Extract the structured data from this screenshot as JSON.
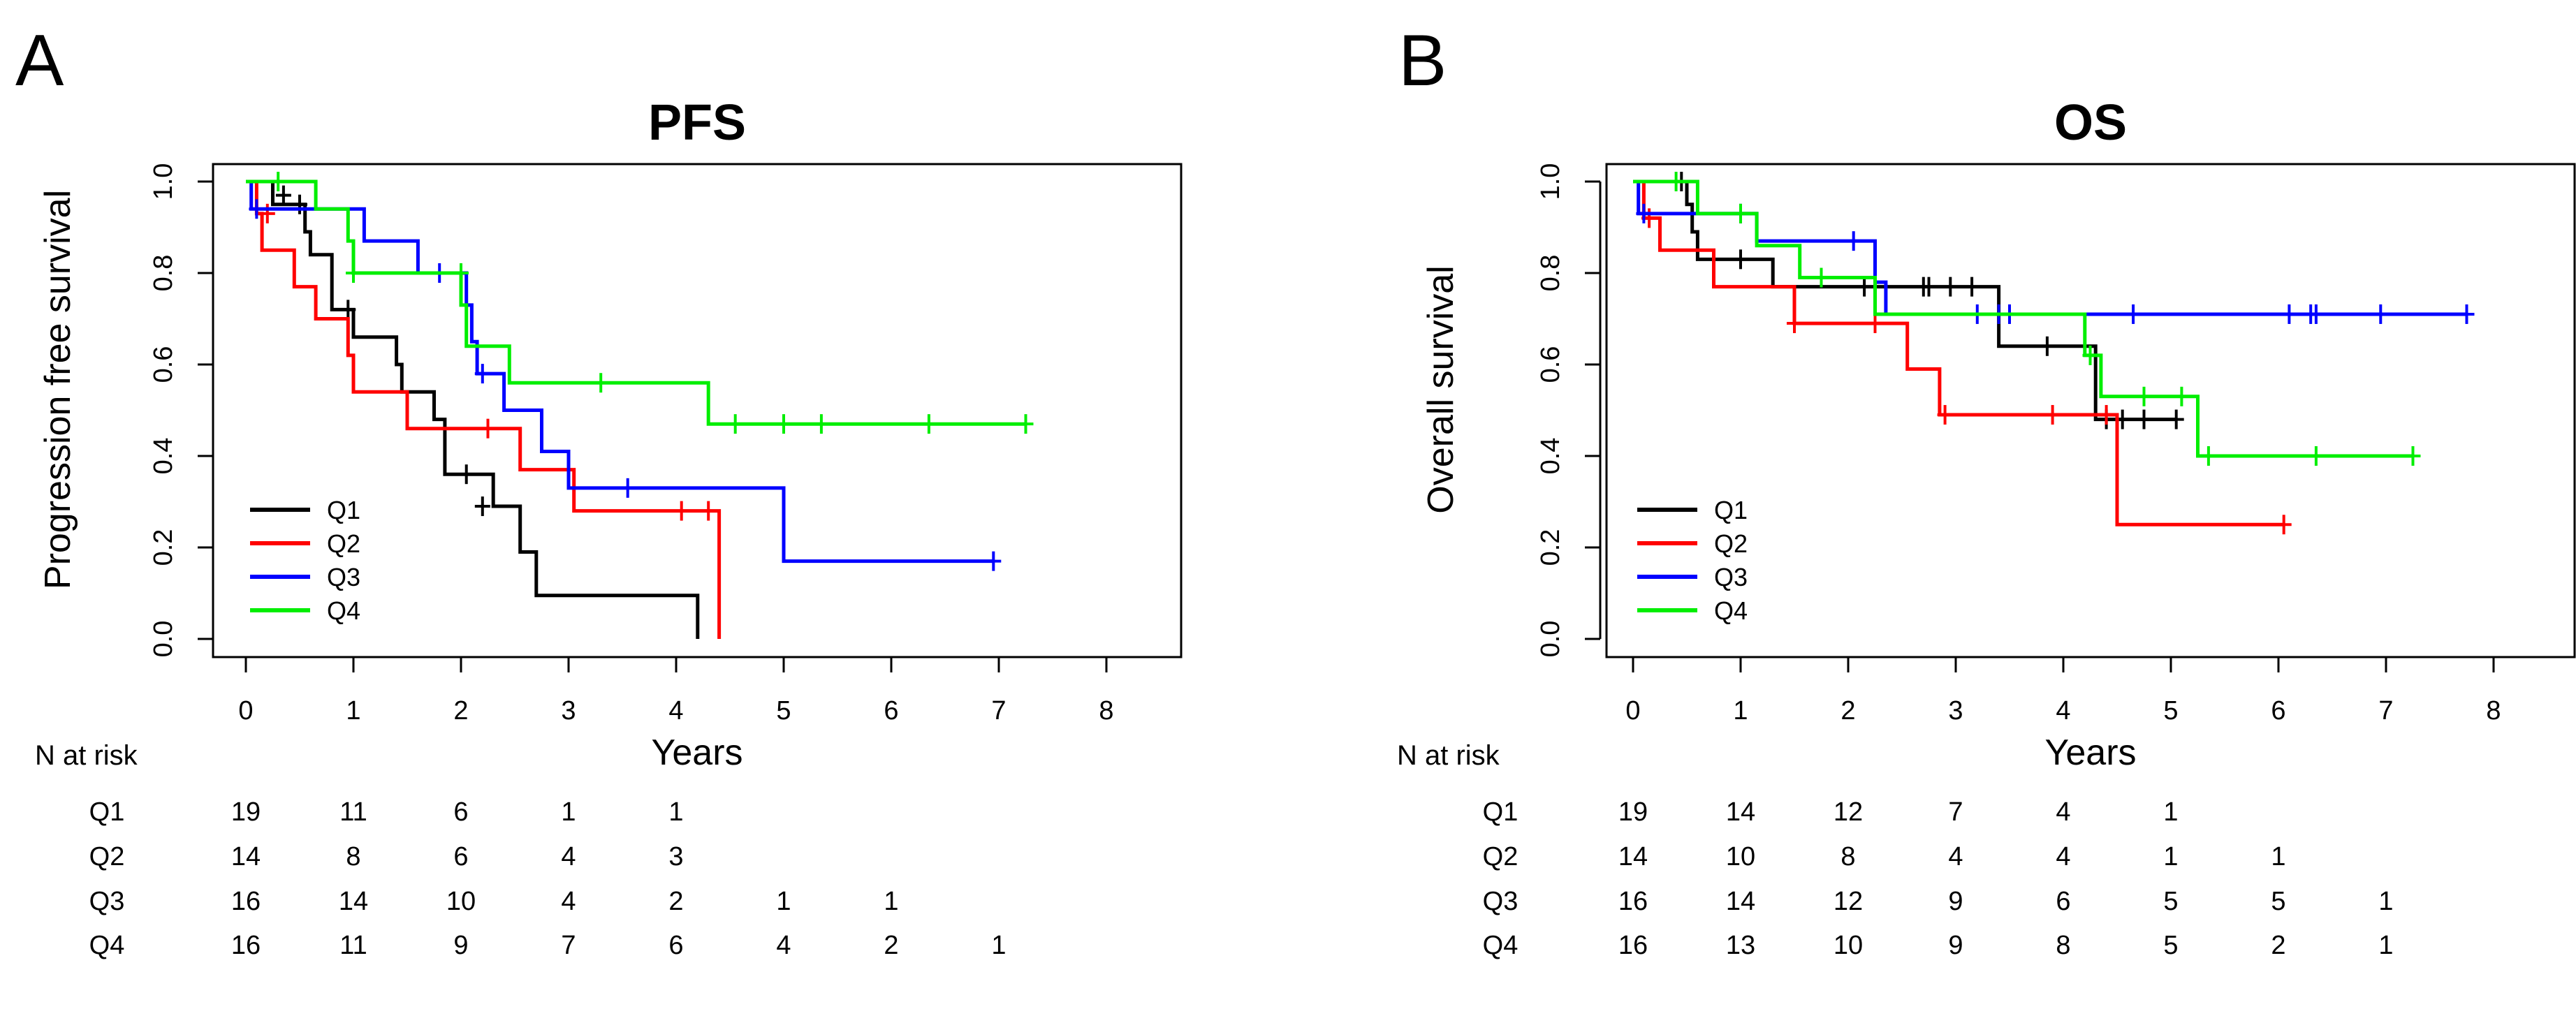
{
  "panels": [
    {
      "letter": "A",
      "risk_label": "N at risk",
      "chart_data": {
        "type": "line",
        "subtype": "kaplan-meier",
        "title": "PFS",
        "xlabel": "Years",
        "ylabel": "Progression free survival",
        "xlim": [
          0,
          8
        ],
        "ylim": [
          0,
          1
        ],
        "xticks": [
          "0",
          "1",
          "2",
          "3",
          "4",
          "5",
          "6",
          "7",
          "8"
        ],
        "yticks": [
          "0.0",
          "0.2",
          "0.4",
          "0.6",
          "0.8",
          "1.0"
        ],
        "legend_position": "bottom-left",
        "grid": false,
        "series": [
          {
            "name": "Q1",
            "color": "#000000",
            "points": [
              [
                0,
                1.0
              ],
              [
                0.25,
                0.95
              ],
              [
                0.55,
                0.89
              ],
              [
                0.6,
                0.84
              ],
              [
                0.8,
                0.72
              ],
              [
                1.0,
                0.66
              ],
              [
                1.2,
                0.66
              ],
              [
                1.4,
                0.6
              ],
              [
                1.45,
                0.54
              ],
              [
                1.55,
                0.54
              ],
              [
                1.75,
                0.48
              ],
              [
                1.85,
                0.36
              ],
              [
                2.3,
                0.29
              ],
              [
                2.55,
                0.19
              ],
              [
                2.7,
                0.095
              ],
              [
                4.2,
                0.095
              ],
              [
                4.2,
                0.0
              ]
            ],
            "censors": [
              [
                0.35,
                0.97
              ],
              [
                0.5,
                0.95
              ],
              [
                0.95,
                0.72
              ],
              [
                2.05,
                0.36
              ],
              [
                2.2,
                0.29
              ]
            ]
          },
          {
            "name": "Q2",
            "color": "#ff0000",
            "points": [
              [
                0,
                1.0
              ],
              [
                0.1,
                0.93
              ],
              [
                0.15,
                0.85
              ],
              [
                0.45,
                0.77
              ],
              [
                0.65,
                0.7
              ],
              [
                0.95,
                0.62
              ],
              [
                1.0,
                0.54
              ],
              [
                1.4,
                0.54
              ],
              [
                1.5,
                0.46
              ],
              [
                2.55,
                0.46
              ],
              [
                2.55,
                0.37
              ],
              [
                3.05,
                0.37
              ],
              [
                3.05,
                0.28
              ],
              [
                4.4,
                0.28
              ],
              [
                4.4,
                0.0
              ]
            ],
            "censors": [
              [
                0.2,
                0.93
              ],
              [
                2.25,
                0.46
              ],
              [
                4.05,
                0.28
              ],
              [
                4.3,
                0.28
              ]
            ]
          },
          {
            "name": "Q3",
            "color": "#0000ff",
            "points": [
              [
                0,
                1.0
              ],
              [
                0.05,
                0.94
              ],
              [
                0.6,
                0.94
              ],
              [
                0.65,
                0.94
              ],
              [
                1.05,
                0.94
              ],
              [
                1.1,
                0.87
              ],
              [
                1.55,
                0.87
              ],
              [
                1.6,
                0.8
              ],
              [
                2.0,
                0.8
              ],
              [
                2.05,
                0.73
              ],
              [
                2.1,
                0.65
              ],
              [
                2.15,
                0.58
              ],
              [
                2.35,
                0.58
              ],
              [
                2.4,
                0.5
              ],
              [
                2.7,
                0.5
              ],
              [
                2.75,
                0.41
              ],
              [
                2.95,
                0.41
              ],
              [
                3.0,
                0.33
              ],
              [
                4.95,
                0.33
              ],
              [
                5.0,
                0.17
              ],
              [
                6.95,
                0.17
              ]
            ],
            "censors": [
              [
                0.1,
                0.94
              ],
              [
                1.8,
                0.8
              ],
              [
                2.2,
                0.58
              ],
              [
                3.55,
                0.33
              ],
              [
                6.95,
                0.17
              ]
            ]
          },
          {
            "name": "Q4",
            "color": "#00ee00",
            "points": [
              [
                0,
                1.0
              ],
              [
                0.6,
                1.0
              ],
              [
                0.65,
                0.94
              ],
              [
                0.9,
                0.94
              ],
              [
                0.95,
                0.87
              ],
              [
                1.0,
                0.8
              ],
              [
                1.95,
                0.8
              ],
              [
                2.0,
                0.73
              ],
              [
                2.05,
                0.64
              ],
              [
                2.4,
                0.64
              ],
              [
                2.45,
                0.56
              ],
              [
                4.3,
                0.56
              ],
              [
                4.3,
                0.47
              ],
              [
                7.25,
                0.47
              ]
            ],
            "censors": [
              [
                0.3,
                1.0
              ],
              [
                1.0,
                0.8
              ],
              [
                2.0,
                0.8
              ],
              [
                3.3,
                0.56
              ],
              [
                4.55,
                0.47
              ],
              [
                5.0,
                0.47
              ],
              [
                5.35,
                0.47
              ],
              [
                6.35,
                0.47
              ],
              [
                7.25,
                0.47
              ]
            ]
          }
        ],
        "risk_table": {
          "time_points": [
            0,
            1,
            2,
            3,
            4,
            5,
            6,
            7
          ],
          "rows": [
            {
              "label": "Q1",
              "values": [
                "19",
                "11",
                "6",
                "1",
                "1",
                "",
                "",
                ""
              ]
            },
            {
              "label": "Q2",
              "values": [
                "14",
                "8",
                "6",
                "4",
                "3",
                "",
                "",
                ""
              ]
            },
            {
              "label": "Q3",
              "values": [
                "16",
                "14",
                "10",
                "4",
                "2",
                "1",
                "1",
                ""
              ]
            },
            {
              "label": "Q4",
              "values": [
                "16",
                "11",
                "9",
                "7",
                "6",
                "4",
                "2",
                "1"
              ]
            }
          ]
        }
      }
    },
    {
      "letter": "B",
      "risk_label": "N at risk",
      "chart_data": {
        "type": "line",
        "subtype": "kaplan-meier",
        "title": "OS",
        "xlabel": "Years",
        "ylabel": "Overall survival",
        "xlim": [
          0,
          8
        ],
        "ylim": [
          0,
          1
        ],
        "xticks": [
          "0",
          "1",
          "2",
          "3",
          "4",
          "5",
          "6",
          "7",
          "8"
        ],
        "yticks": [
          "0.0",
          "0.2",
          "0.4",
          "0.6",
          "0.8",
          "1.0"
        ],
        "legend_position": "bottom-left",
        "grid": false,
        "series": [
          {
            "name": "Q1",
            "color": "#000000",
            "points": [
              [
                0,
                1.0
              ],
              [
                0.4,
                1.0
              ],
              [
                0.5,
                0.95
              ],
              [
                0.55,
                0.89
              ],
              [
                0.6,
                0.83
              ],
              [
                1.2,
                0.83
              ],
              [
                1.3,
                0.77
              ],
              [
                3.35,
                0.77
              ],
              [
                3.4,
                0.64
              ],
              [
                4.25,
                0.64
              ],
              [
                4.3,
                0.48
              ],
              [
                5.05,
                0.48
              ]
            ],
            "censors": [
              [
                0.45,
                1.0
              ],
              [
                1.0,
                0.83
              ],
              [
                2.15,
                0.77
              ],
              [
                2.7,
                0.77
              ],
              [
                2.75,
                0.77
              ],
              [
                2.95,
                0.77
              ],
              [
                3.15,
                0.77
              ],
              [
                3.85,
                0.64
              ],
              [
                4.4,
                0.48
              ],
              [
                4.55,
                0.48
              ],
              [
                4.75,
                0.48
              ],
              [
                5.05,
                0.48
              ]
            ]
          },
          {
            "name": "Q2",
            "color": "#ff0000",
            "points": [
              [
                0,
                1.0
              ],
              [
                0.1,
                0.92
              ],
              [
                0.25,
                0.85
              ],
              [
                0.75,
                0.77
              ],
              [
                1.5,
                0.69
              ],
              [
                2.55,
                0.69
              ],
              [
                2.55,
                0.59
              ],
              [
                2.85,
                0.49
              ],
              [
                4.5,
                0.49
              ],
              [
                4.5,
                0.25
              ],
              [
                6.05,
                0.25
              ]
            ],
            "censors": [
              [
                0.15,
                0.92
              ],
              [
                1.5,
                0.69
              ],
              [
                2.25,
                0.69
              ],
              [
                2.9,
                0.49
              ],
              [
                3.9,
                0.49
              ],
              [
                4.4,
                0.49
              ],
              [
                6.05,
                0.25
              ]
            ]
          },
          {
            "name": "Q3",
            "color": "#0000ff",
            "points": [
              [
                0,
                1.0
              ],
              [
                0.05,
                0.93
              ],
              [
                1.1,
                0.93
              ],
              [
                1.15,
                0.87
              ],
              [
                2.25,
                0.87
              ],
              [
                2.25,
                0.78
              ],
              [
                2.35,
                0.71
              ],
              [
                7.75,
                0.71
              ]
            ],
            "censors": [
              [
                0.1,
                0.93
              ],
              [
                1.0,
                0.93
              ],
              [
                2.05,
                0.87
              ],
              [
                3.2,
                0.71
              ],
              [
                3.4,
                0.71
              ],
              [
                3.5,
                0.71
              ],
              [
                4.65,
                0.71
              ],
              [
                6.1,
                0.71
              ],
              [
                6.3,
                0.71
              ],
              [
                6.35,
                0.71
              ],
              [
                6.95,
                0.71
              ],
              [
                7.75,
                0.71
              ]
            ]
          },
          {
            "name": "Q4",
            "color": "#00ee00",
            "points": [
              [
                0,
                1.0
              ],
              [
                0.55,
                1.0
              ],
              [
                0.6,
                0.93
              ],
              [
                1.1,
                0.93
              ],
              [
                1.15,
                0.86
              ],
              [
                1.5,
                0.86
              ],
              [
                1.55,
                0.79
              ],
              [
                2.2,
                0.79
              ],
              [
                2.25,
                0.71
              ],
              [
                4.15,
                0.71
              ],
              [
                4.2,
                0.62
              ],
              [
                4.3,
                0.62
              ],
              [
                4.35,
                0.53
              ],
              [
                5.2,
                0.53
              ],
              [
                5.25,
                0.4
              ],
              [
                7.25,
                0.4
              ]
            ],
            "censors": [
              [
                0.4,
                1.0
              ],
              [
                1.0,
                0.93
              ],
              [
                1.75,
                0.79
              ],
              [
                4.25,
                0.62
              ],
              [
                4.75,
                0.53
              ],
              [
                5.1,
                0.53
              ],
              [
                5.35,
                0.4
              ],
              [
                6.35,
                0.4
              ],
              [
                7.25,
                0.4
              ]
            ]
          }
        ],
        "risk_table": {
          "time_points": [
            0,
            1,
            2,
            3,
            4,
            5,
            6,
            7
          ],
          "rows": [
            {
              "label": "Q1",
              "values": [
                "19",
                "14",
                "12",
                "7",
                "4",
                "1",
                "",
                ""
              ]
            },
            {
              "label": "Q2",
              "values": [
                "14",
                "10",
                "8",
                "4",
                "4",
                "1",
                "1",
                ""
              ]
            },
            {
              "label": "Q3",
              "values": [
                "16",
                "14",
                "12",
                "9",
                "6",
                "5",
                "5",
                "1"
              ]
            },
            {
              "label": "Q4",
              "values": [
                "16",
                "13",
                "10",
                "9",
                "8",
                "5",
                "2",
                "1"
              ]
            }
          ]
        }
      }
    }
  ]
}
